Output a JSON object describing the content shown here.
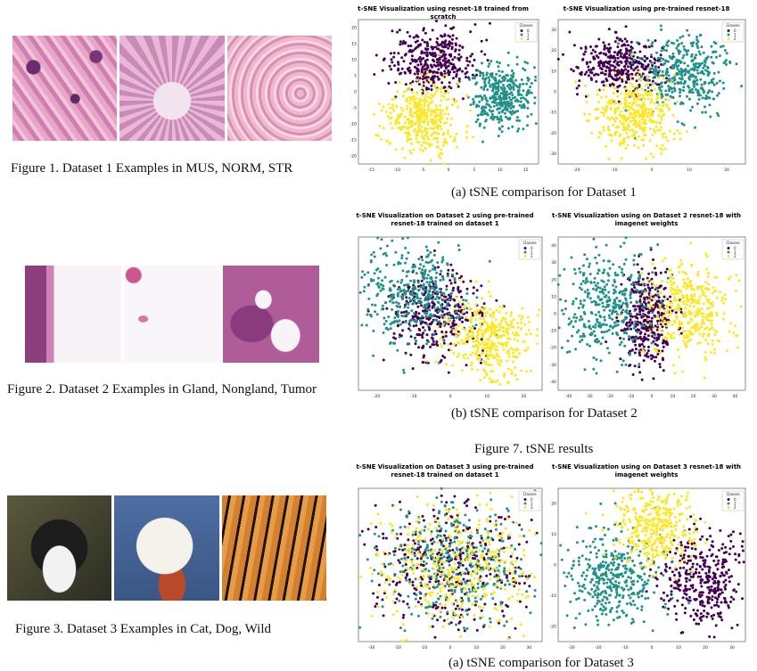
{
  "figures": {
    "fig1_caption": "Figure 1. Dataset 1 Examples in MUS, NORM, STR",
    "fig2_caption": "Figure 2. Dataset 2 Examples in Gland, Nongland, Tumor",
    "fig3_caption": "Figure 3. Dataset 3 Examples in Cat, Dog, Wild",
    "fig7_caption": "Figure 7. tSNE results",
    "sub_a": "(a) tSNE comparison for Dataset 1",
    "sub_b": "(b) tSNE comparison for Dataset 2",
    "sub_c": "(a) tSNE comparison for Dataset 3"
  },
  "colors": {
    "class0": "#440154",
    "class1": "#21918c",
    "class2": "#fde725"
  },
  "legend": {
    "title": "Classes",
    "labels": [
      "0",
      "1",
      "2"
    ]
  },
  "chart_data": [
    {
      "type": "scatter",
      "title": "t-SNE Visualization using resnet-18 trained from scratch",
      "xticks": [
        "-15",
        "-10",
        "-5",
        "0",
        "5",
        "10",
        "15"
      ],
      "yticks": [
        "20",
        "15",
        "10",
        "5",
        "0",
        "-5",
        "-10",
        "-15",
        "-20"
      ],
      "xlim": [
        -17,
        17
      ],
      "ylim": [
        -21,
        21
      ],
      "legend": "top-right",
      "series": [
        {
          "name": "0",
          "cx": -3,
          "cy": 9,
          "sx": 4,
          "sy": 4.5
        },
        {
          "name": "1",
          "cx": 10,
          "cy": -1,
          "sx": 3,
          "sy": 4.5
        },
        {
          "name": "2",
          "cx": -5,
          "cy": -8,
          "sx": 3.5,
          "sy": 5.5
        }
      ]
    },
    {
      "type": "scatter",
      "title": "t-SNE Visualization using pre-trained resnet-18",
      "xticks": [
        "-20",
        "-10",
        "0",
        "10",
        "20"
      ],
      "yticks": [
        "30",
        "20",
        "10",
        "0",
        "-10",
        "-20",
        "-30"
      ],
      "xlim": [
        -27,
        27
      ],
      "ylim": [
        -32,
        32
      ],
      "legend": "top-right",
      "series": [
        {
          "name": "0",
          "cx": -9,
          "cy": 12,
          "sx": 6,
          "sy": 6
        },
        {
          "name": "1",
          "cx": 10,
          "cy": 8,
          "sx": 6,
          "sy": 8
        },
        {
          "name": "2",
          "cx": -5,
          "cy": -10,
          "sx": 6,
          "sy": 8
        }
      ]
    },
    {
      "type": "scatter",
      "title": "t-SNE Visualization  on Dataset 2 using pre-trained resnet-18 trained on dataset 1",
      "xticks": [
        "-20",
        "-10",
        "0",
        "10",
        "20"
      ],
      "yticks": [
        "",
        "",
        "",
        "",
        "",
        "",
        ""
      ],
      "xlim": [
        -25,
        27
      ],
      "ylim": [
        -30,
        30
      ],
      "legend": "top-right",
      "series": [
        {
          "name": "0",
          "cx": -3,
          "cy": 0,
          "sx": 7,
          "sy": 9
        },
        {
          "name": "1",
          "cx": -10,
          "cy": 8,
          "sx": 8,
          "sy": 10
        },
        {
          "name": "2",
          "cx": 12,
          "cy": -10,
          "sx": 6,
          "sy": 8
        }
      ]
    },
    {
      "type": "scatter",
      "title": "t-SNE Visualization using  on Dataset 2 resnet-18 with imagenet weights",
      "xticks": [
        "-40",
        "-30",
        "-20",
        "-10",
        "0",
        "10",
        "20",
        "30",
        "40"
      ],
      "yticks": [
        "40",
        "30",
        "20",
        "10",
        "0",
        "-10",
        "-20",
        "-30",
        "-40"
      ],
      "xlim": [
        -45,
        45
      ],
      "ylim": [
        -45,
        45
      ],
      "legend": "top-right",
      "series": [
        {
          "name": "0",
          "cx": -2,
          "cy": -3,
          "sx": 6,
          "sy": 15
        },
        {
          "name": "1",
          "cx": -22,
          "cy": 5,
          "sx": 12,
          "sy": 16
        },
        {
          "name": "2",
          "cx": 18,
          "cy": 2,
          "sx": 10,
          "sy": 14
        }
      ]
    },
    {
      "type": "scatter",
      "title": "t-SNE Visualization  on Dataset 3 using pre-trained resnet-18 trained on dataset 1",
      "xticks": [
        "-30",
        "-20",
        "-10",
        "0",
        "10",
        "20",
        "30"
      ],
      "yticks": [
        "",
        "",
        "",
        "",
        "",
        "",
        ""
      ],
      "xlim": [
        -32,
        32
      ],
      "ylim": [
        -30,
        30
      ],
      "legend": "top-right",
      "series": [
        {
          "name": "0",
          "cx": 0,
          "cy": 0,
          "sx": 14,
          "sy": 12
        },
        {
          "name": "1",
          "cx": 0,
          "cy": 0,
          "sx": 14,
          "sy": 12
        },
        {
          "name": "2",
          "cx": 2,
          "cy": 0,
          "sx": 14,
          "sy": 12
        }
      ]
    },
    {
      "type": "scatter",
      "title": "t-SNE Visualization using  on Dataset 3 resnet-18 with imagenet weights",
      "xticks": [
        "-30",
        "-20",
        "-10",
        "0",
        "10",
        "20",
        "30"
      ],
      "yticks": [
        "20",
        "10",
        "0",
        "-10",
        "-20"
      ],
      "xlim": [
        -35,
        35
      ],
      "ylim": [
        -28,
        28
      ],
      "legend": "top-right",
      "series": [
        {
          "name": "0",
          "cx": 18,
          "cy": -6,
          "sx": 8,
          "sy": 8
        },
        {
          "name": "1",
          "cx": -14,
          "cy": -4,
          "sx": 9,
          "sy": 8
        },
        {
          "name": "2",
          "cx": 2,
          "cy": 14,
          "sx": 7,
          "sy": 7
        }
      ]
    }
  ]
}
